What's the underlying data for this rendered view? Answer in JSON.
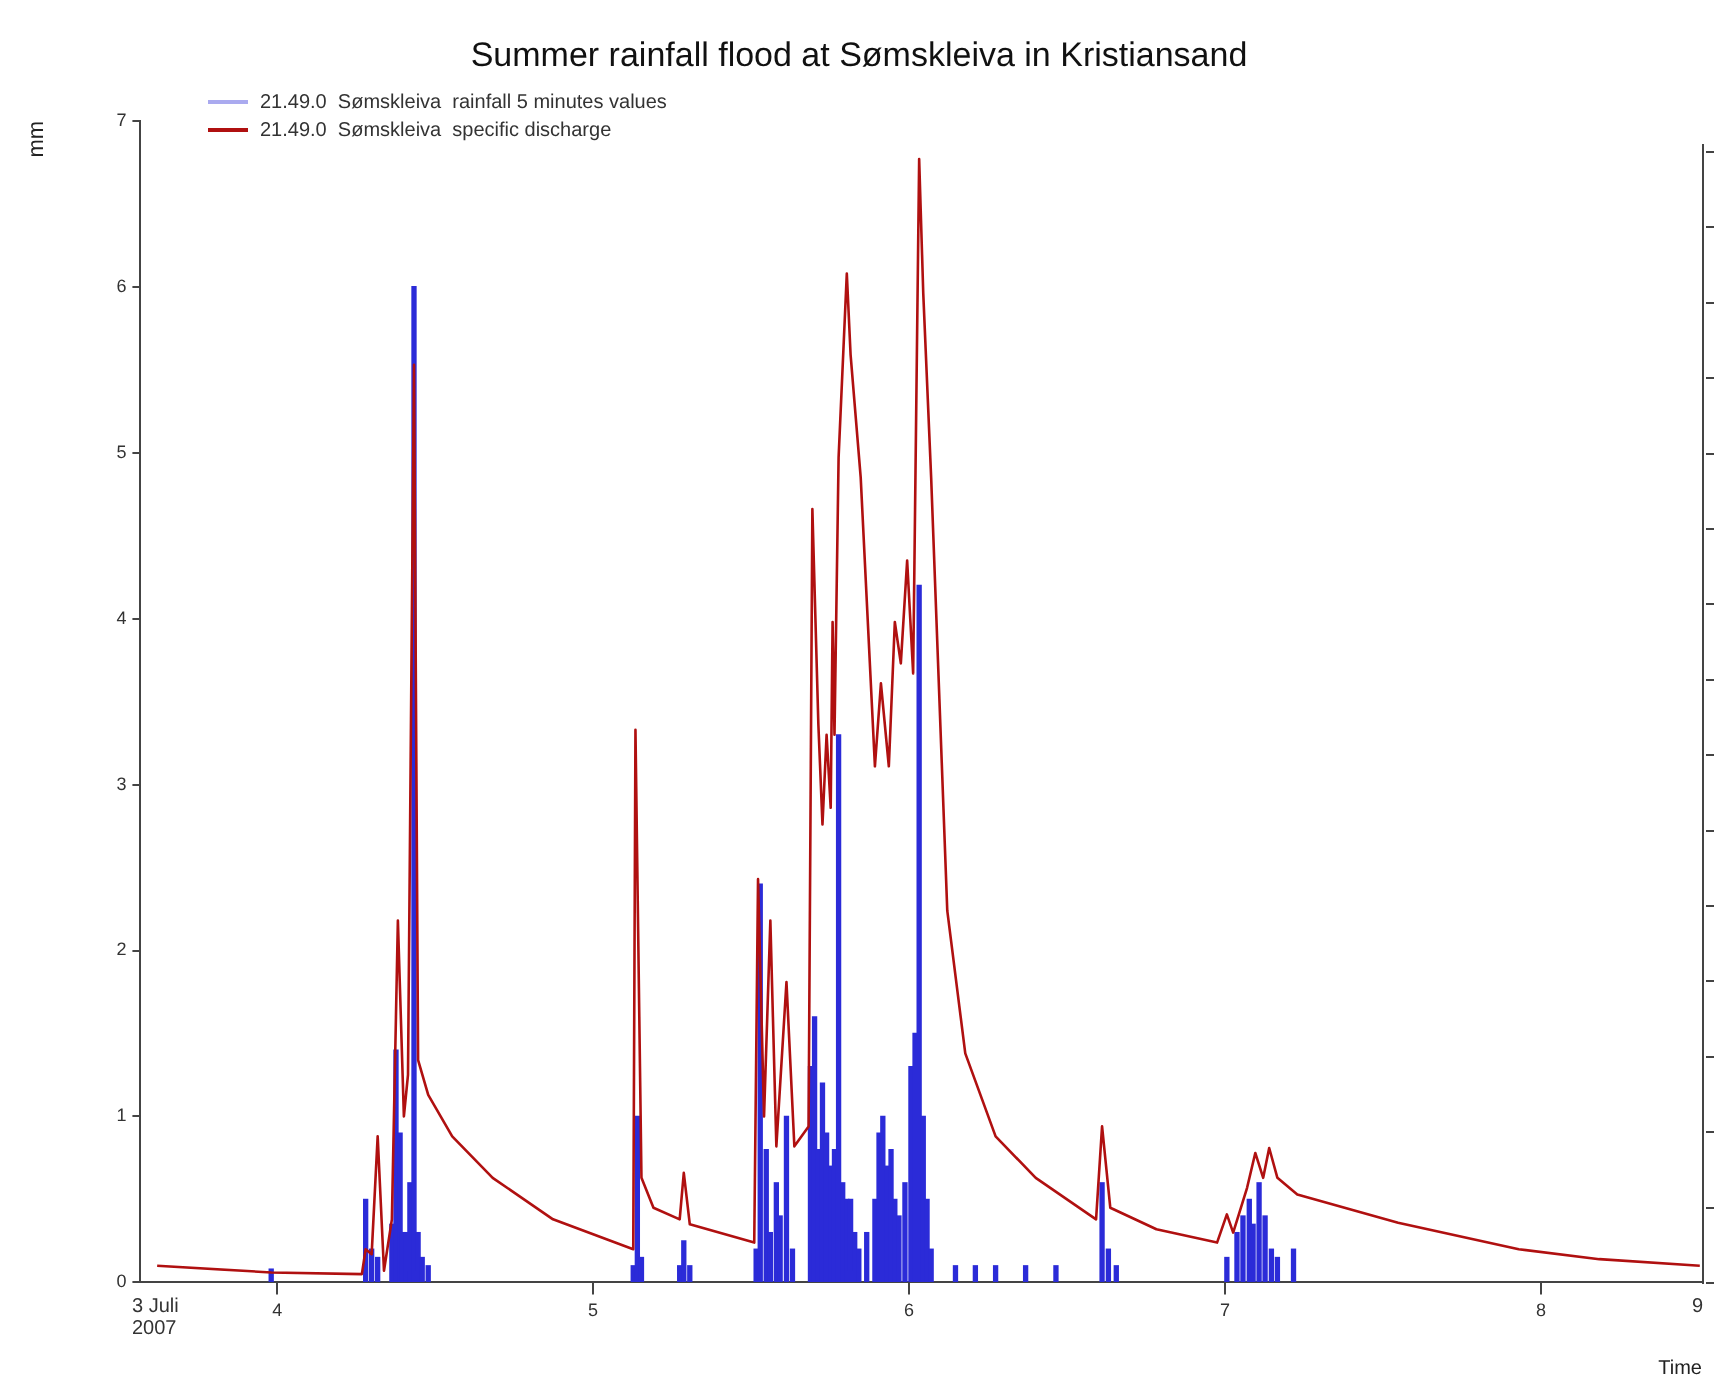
{
  "chart_data": {
    "type": "line",
    "title": "Summer rainfall flood at Sømskleiva in Kristiansand",
    "xlabel": "Time",
    "ylabel": "mm",
    "annotations": [
      "3 Juli 2007",
      "9"
    ],
    "xlim": [
      3.567,
      8.51
    ],
    "xticks": [
      4,
      5,
      6,
      7,
      8
    ],
    "ylim": [
      0,
      7
    ],
    "yticks": [
      0,
      1,
      2,
      3,
      4,
      5,
      6,
      7
    ],
    "legend": "top left",
    "grid": false,
    "marker": "none",
    "line_style": "solid",
    "series": [
      {
        "name": "21.49.0  Sømskleiva  rainfall 5 minutes values",
        "type": "bar",
        "color": "#2b2bd8",
        "x": [
          3.981,
          4.28,
          4.299,
          4.318,
          4.363,
          4.376,
          4.389,
          4.395,
          4.408,
          4.42,
          4.433,
          4.446,
          4.459,
          4.478,
          5.127,
          5.14,
          5.153,
          5.274,
          5.287,
          5.306,
          5.516,
          5.529,
          5.548,
          5.561,
          5.58,
          5.592,
          5.612,
          5.631,
          5.688,
          5.701,
          5.713,
          5.726,
          5.739,
          5.752,
          5.764,
          5.777,
          5.79,
          5.803,
          5.815,
          5.828,
          5.841,
          5.866,
          5.892,
          5.905,
          5.917,
          5.93,
          5.943,
          5.955,
          5.968,
          5.987,
          6.006,
          6.019,
          6.032,
          6.045,
          6.057,
          6.07,
          6.147,
          6.21,
          6.274,
          6.369,
          6.465,
          6.611,
          6.631,
          6.656,
          7.006,
          7.038,
          7.057,
          7.077,
          7.089,
          7.108,
          7.127,
          7.147,
          7.166,
          7.217
        ],
        "values": [
          0.08,
          0.5,
          0.2,
          0.15,
          0.35,
          1.4,
          0.9,
          0.3,
          0.3,
          0.6,
          6.0,
          0.3,
          0.15,
          0.1,
          0.1,
          1.0,
          0.15,
          0.1,
          0.25,
          0.1,
          0.2,
          2.4,
          0.8,
          0.3,
          0.6,
          0.4,
          1.0,
          0.2,
          1.3,
          1.6,
          0.8,
          1.2,
          0.9,
          0.7,
          0.8,
          3.3,
          0.6,
          0.5,
          0.5,
          0.3,
          0.2,
          0.3,
          0.5,
          0.9,
          1.0,
          0.7,
          0.8,
          0.5,
          0.4,
          0.6,
          1.3,
          1.5,
          4.2,
          1.0,
          0.5,
          0.2,
          0.1,
          0.1,
          0.1,
          0.1,
          0.1,
          0.6,
          0.2,
          0.1,
          0.15,
          0.3,
          0.4,
          0.5,
          0.35,
          0.6,
          0.4,
          0.2,
          0.15,
          0.2
        ]
      },
      {
        "name": "21.49.0  Sømskleiva  specific discharge",
        "color": "#b01010",
        "x": [
          3.62,
          3.981,
          4.268,
          4.28,
          4.299,
          4.318,
          4.338,
          4.363,
          4.382,
          4.401,
          4.414,
          4.433,
          4.446,
          4.478,
          4.554,
          4.682,
          4.873,
          5.127,
          5.134,
          5.153,
          5.191,
          5.274,
          5.287,
          5.306,
          5.51,
          5.522,
          5.541,
          5.561,
          5.58,
          5.612,
          5.637,
          5.682,
          5.694,
          5.713,
          5.726,
          5.739,
          5.752,
          5.758,
          5.764,
          5.777,
          5.803,
          5.815,
          5.847,
          5.892,
          5.911,
          5.936,
          5.955,
          5.974,
          5.994,
          6.013,
          6.032,
          6.045,
          6.07,
          6.121,
          6.178,
          6.274,
          6.401,
          6.592,
          6.611,
          6.637,
          6.783,
          6.975,
          7.006,
          7.026,
          7.07,
          7.096,
          7.121,
          7.14,
          7.166,
          7.229,
          7.548,
          7.93,
          8.185,
          8.503
        ],
        "values": [
          0.1,
          0.06,
          0.05,
          0.2,
          0.17,
          0.88,
          0.07,
          0.38,
          2.18,
          1.0,
          1.25,
          5.53,
          1.34,
          1.13,
          0.88,
          0.63,
          0.38,
          0.2,
          3.33,
          0.63,
          0.45,
          0.38,
          0.66,
          0.35,
          0.24,
          2.43,
          1.0,
          2.18,
          0.82,
          1.81,
          0.82,
          0.94,
          4.66,
          3.36,
          2.76,
          3.3,
          2.86,
          3.98,
          3.3,
          4.97,
          6.08,
          5.59,
          4.85,
          3.11,
          3.61,
          3.11,
          3.98,
          3.73,
          4.35,
          3.67,
          6.77,
          5.96,
          4.85,
          2.24,
          1.38,
          0.88,
          0.63,
          0.38,
          0.94,
          0.45,
          0.32,
          0.24,
          0.41,
          0.3,
          0.57,
          0.78,
          0.63,
          0.81,
          0.63,
          0.53,
          0.36,
          0.2,
          0.14,
          0.1
        ]
      }
    ]
  }
}
